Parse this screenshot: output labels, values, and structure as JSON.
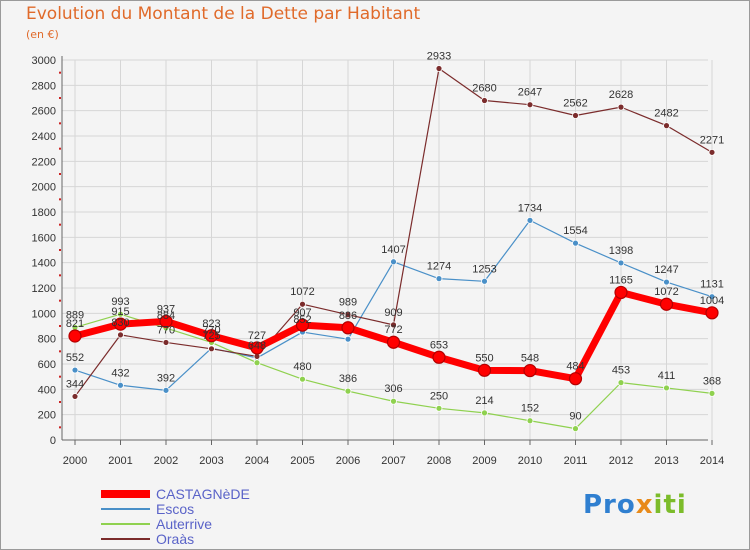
{
  "title": "Evolution du Montant de la Dette par Habitant",
  "subtitle": "(en €)",
  "logo": {
    "part1": "Pro",
    "part2": "x",
    "part3": "iti"
  },
  "chart_data": {
    "type": "line",
    "x": [
      "2000",
      "2001",
      "2002",
      "2003",
      "2004",
      "2005",
      "2006",
      "2007",
      "2008",
      "2009",
      "2010",
      "2011",
      "2012",
      "2013",
      "2014"
    ],
    "ylim": [
      0,
      3000
    ],
    "yticks": [
      0,
      200,
      400,
      600,
      800,
      1000,
      1200,
      1400,
      1600,
      1800,
      2000,
      2200,
      2400,
      2600,
      2800,
      3000
    ],
    "grid": true,
    "legend_position": "bottom-left",
    "series": [
      {
        "name": "Escos",
        "color": "#4a90c8",
        "width": 1.2,
        "marker": true,
        "values": [
          552,
          432,
          392,
          725,
          648,
          852,
          796,
          1407,
          1274,
          1253,
          1734,
          1554,
          1398,
          1247,
          1131
        ],
        "labels": [
          "552",
          "432",
          "392",
          "725",
          "648",
          "852",
          "",
          "1407",
          "1274",
          "1253",
          "1734",
          "1554",
          "1398",
          "1247",
          "1131"
        ]
      },
      {
        "name": "Auterrive",
        "color": "#8fd14f",
        "width": 1.2,
        "marker": true,
        "values": [
          889,
          993,
          884,
          770,
          610,
          480,
          386,
          306,
          250,
          214,
          152,
          90,
          453,
          411,
          368
        ],
        "labels": [
          "889",
          "993",
          "884",
          "770",
          "",
          "480",
          "386",
          "306",
          "250",
          "214",
          "152",
          "90",
          "453",
          "411",
          "368"
        ]
      },
      {
        "name": "Oraàs",
        "color": "#7b2c2c",
        "width": 1.2,
        "marker": true,
        "values": [
          344,
          830,
          770,
          720,
          660,
          1072,
          989,
          909,
          2933,
          2680,
          2647,
          2562,
          2628,
          2482,
          2271
        ],
        "labels": [
          "344",
          "830",
          "770",
          "",
          "",
          "1072",
          "989",
          "909",
          "2933",
          "2680",
          "2647",
          "2562",
          "2628",
          "2482",
          "2271"
        ]
      },
      {
        "name": "CASTAGNèDE",
        "color": "#ff0000",
        "width": 7,
        "marker": true,
        "values": [
          821,
          915,
          937,
          823,
          727,
          907,
          886,
          772,
          653,
          550,
          548,
          484,
          1165,
          1072,
          1004
        ],
        "labels": [
          "821",
          "915",
          "937",
          "823",
          "727",
          "907",
          "886",
          "772",
          "653",
          "550",
          "548",
          "484",
          "1165",
          "1072",
          "1004"
        ]
      }
    ]
  }
}
